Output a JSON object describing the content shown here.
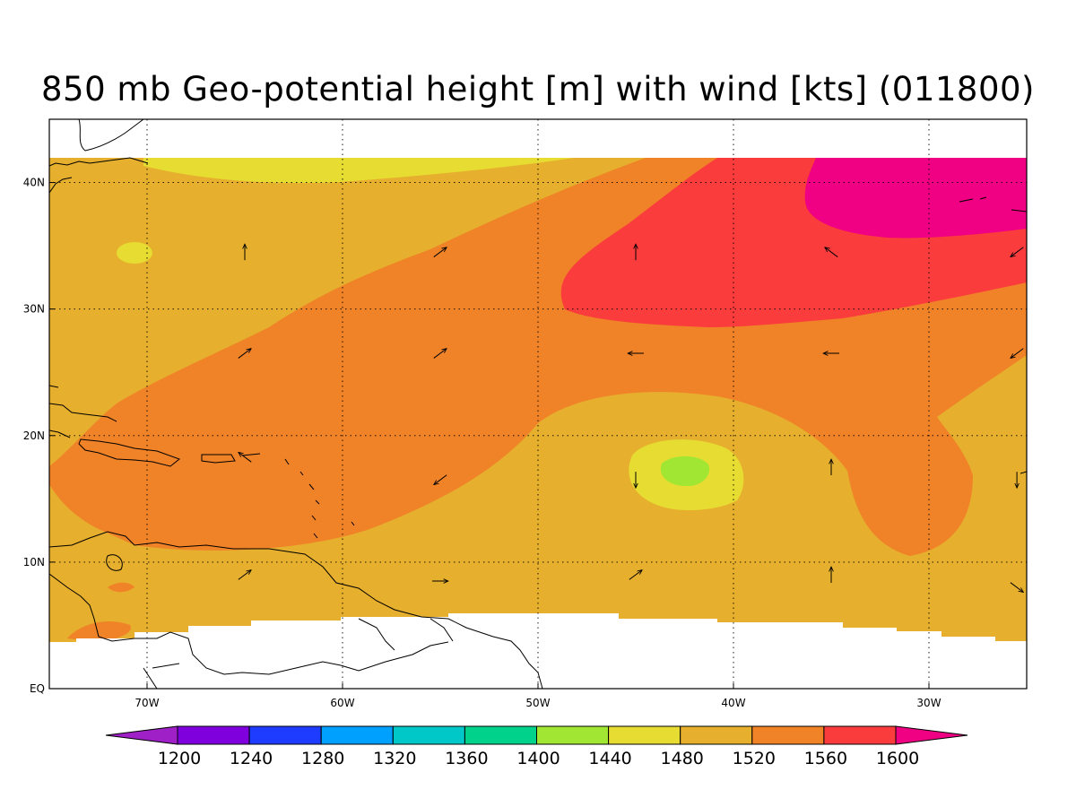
{
  "title": "850 mb Geo-potential height [m] with wind [kts] (011800)",
  "map": {
    "lon_range": [
      -75,
      -25
    ],
    "lat_range": [
      0,
      45
    ],
    "data_lat_range": [
      4,
      42
    ],
    "lon_ticks": [
      {
        "value": -70,
        "label": "70W"
      },
      {
        "value": -60,
        "label": "60W"
      },
      {
        "value": -50,
        "label": "50W"
      },
      {
        "value": -40,
        "label": "40W"
      },
      {
        "value": -30,
        "label": "30W"
      }
    ],
    "lat_ticks": [
      {
        "value": 0,
        "label": "EQ"
      },
      {
        "value": 10,
        "label": "10N"
      },
      {
        "value": 20,
        "label": "20N"
      },
      {
        "value": 30,
        "label": "30N"
      },
      {
        "value": 40,
        "label": "40N"
      }
    ]
  },
  "colorbar": {
    "levels": [
      1200,
      1240,
      1280,
      1320,
      1360,
      1400,
      1440,
      1480,
      1520,
      1560,
      1600
    ],
    "colors": [
      "#a020c8",
      "#7f00dc",
      "#1e3cff",
      "#00a0ff",
      "#00c8c8",
      "#00d28c",
      "#a0e632",
      "#e6dc32",
      "#e6af2d",
      "#f08228",
      "#fa3c3c",
      "#f00082"
    ]
  },
  "regions": {
    "r1480": "#e6dc32",
    "r1520": "#e6af2d",
    "r1560": "#f08228",
    "r1600": "#fa3c3c",
    "r1640": "#f00082",
    "r1440": "#a0e632"
  },
  "chart_data": {
    "type": "heatmap",
    "variable": "850 mb geopotential height (m) with wind vectors (kts)",
    "xlabel": "",
    "ylabel": "",
    "colorbar_levels": [
      1200,
      1240,
      1280,
      1320,
      1360,
      1400,
      1440,
      1480,
      1520,
      1560,
      1600
    ],
    "wind_vectors": [
      {
        "lon": -65,
        "lat": 34.5,
        "dir": "N"
      },
      {
        "lon": -55,
        "lat": 34.5,
        "dir": "NE"
      },
      {
        "lon": -45,
        "lat": 34.5,
        "dir": "N"
      },
      {
        "lon": -35,
        "lat": 34.5,
        "dir": "NW"
      },
      {
        "lon": -25.5,
        "lat": 34.5,
        "dir": "SW"
      },
      {
        "lon": -65,
        "lat": 26.5,
        "dir": "NE"
      },
      {
        "lon": -55,
        "lat": 26.5,
        "dir": "NE"
      },
      {
        "lon": -45,
        "lat": 26.5,
        "dir": "W"
      },
      {
        "lon": -35,
        "lat": 26.5,
        "dir": "W"
      },
      {
        "lon": -25.5,
        "lat": 26.5,
        "dir": "SW"
      },
      {
        "lon": -65,
        "lat": 18.3,
        "dir": "NW"
      },
      {
        "lon": -55,
        "lat": 16.5,
        "dir": "SW"
      },
      {
        "lon": -45,
        "lat": 16.5,
        "dir": "S"
      },
      {
        "lon": -35,
        "lat": 17.5,
        "dir": "N"
      },
      {
        "lon": -25.5,
        "lat": 16.5,
        "dir": "S"
      },
      {
        "lon": -65,
        "lat": 9,
        "dir": "NE"
      },
      {
        "lon": -55,
        "lat": 8.5,
        "dir": "E"
      },
      {
        "lon": -45,
        "lat": 9,
        "dir": "NE"
      },
      {
        "lon": -35,
        "lat": 9,
        "dir": "N"
      },
      {
        "lon": -25.5,
        "lat": 8,
        "dir": "SE"
      }
    ]
  }
}
